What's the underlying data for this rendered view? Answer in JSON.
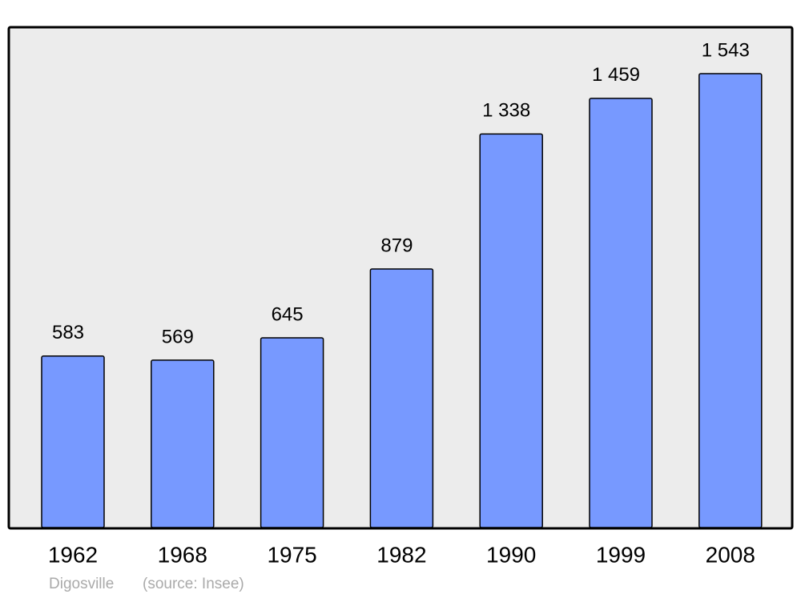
{
  "chart_data": {
    "type": "bar",
    "categories": [
      "1962",
      "1968",
      "1975",
      "1982",
      "1990",
      "1999",
      "2008"
    ],
    "values": [
      583,
      569,
      645,
      879,
      1338,
      1459,
      1543
    ],
    "value_labels": [
      "583",
      "569",
      "645",
      "879",
      "1 338",
      "1 459",
      "1 543"
    ],
    "color": "#7799ff",
    "place": "Digosville",
    "source": "(source: Insee)"
  }
}
